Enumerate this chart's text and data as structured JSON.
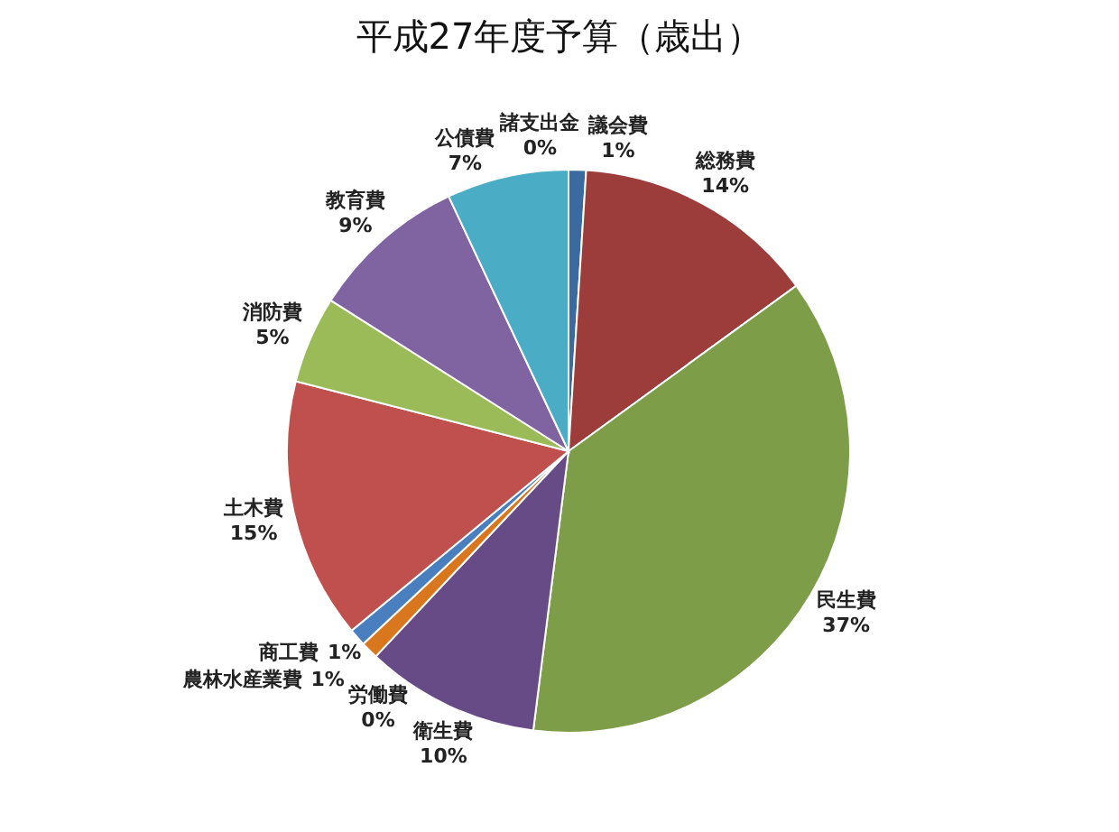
{
  "chart_data": {
    "type": "pie",
    "title": "平成27年度予算（歳出）",
    "categories": [
      "議会費",
      "総務費",
      "民生費",
      "衛生費",
      "労働費",
      "農林水産業費",
      "商工費",
      "土木費",
      "消防費",
      "教育費",
      "公債費",
      "諸支出金"
    ],
    "values": [
      1,
      14,
      37,
      10,
      0,
      1,
      1,
      15,
      5,
      9,
      7,
      0
    ],
    "value_labels": [
      "1%",
      "14%",
      "37%",
      "10%",
      "0%",
      "1%",
      "1%",
      "15%",
      "5%",
      "9%",
      "7%",
      "0%"
    ],
    "colors": [
      "#3b6aa0",
      "#9c3d3b",
      "#7e9d48",
      "#664b87",
      null,
      "#d9771f",
      "#4a7fbf",
      "#c0504d",
      "#9bbb59",
      "#8064a2",
      "#4bacc6",
      null
    ],
    "legend": false
  }
}
